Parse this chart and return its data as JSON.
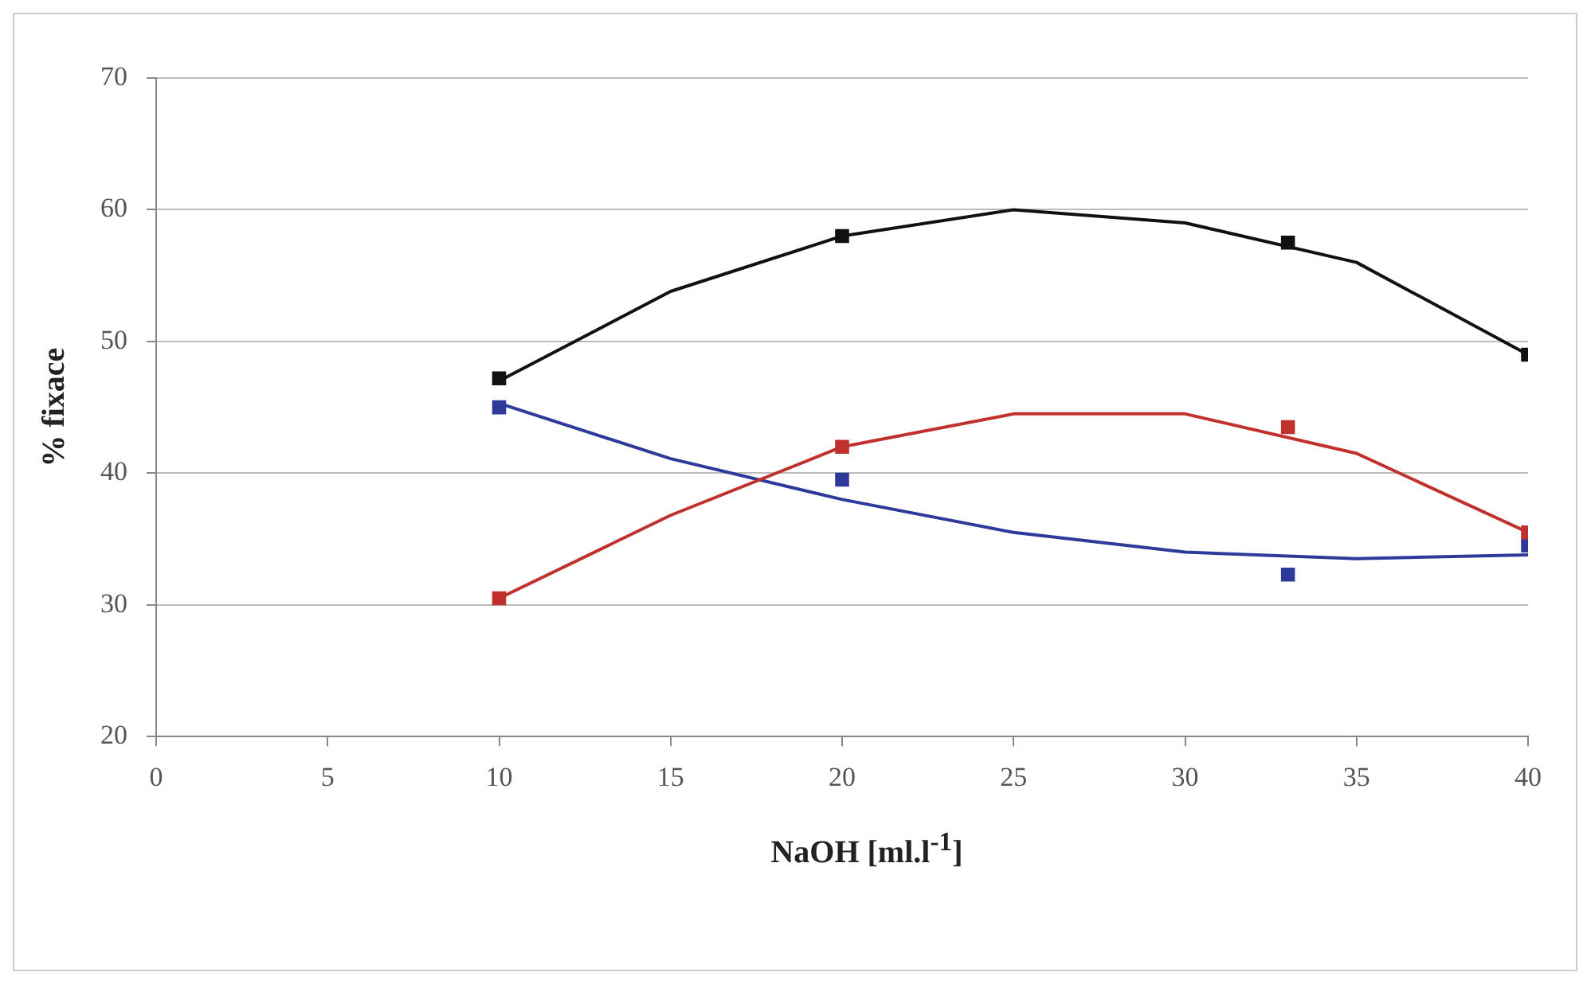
{
  "chart_data": {
    "type": "scatter",
    "xlabel": "NaOH [ml.l$^{-1}$]",
    "ylabel": "% fixace",
    "xlim": [
      0,
      40
    ],
    "xticks": [
      0,
      5,
      10,
      15,
      20,
      25,
      30,
      35,
      40
    ],
    "ylim": [
      20,
      70
    ],
    "yticks": [
      20,
      30,
      40,
      50,
      60,
      70
    ],
    "grid": "y",
    "legend": false,
    "series": [
      {
        "type": "scatter",
        "marker": "square",
        "color": "#111111",
        "x": [
          10,
          20,
          33,
          40
        ],
        "values": [
          47.2,
          58,
          57.5,
          49
        ]
      },
      {
        "type": "scatter",
        "marker": "square",
        "color": "#c0302c",
        "x": [
          10,
          20,
          33,
          40
        ],
        "values": [
          30.5,
          42,
          43.5,
          35.5
        ]
      },
      {
        "type": "scatter",
        "marker": "square",
        "color": "#2e3a9a",
        "x": [
          10,
          20,
          33,
          40
        ],
        "values": [
          45,
          39.5,
          32.3,
          34.5
        ]
      },
      {
        "type": "line",
        "marker": "none",
        "color": "#111111",
        "x": [
          10,
          15,
          20,
          25,
          30,
          35,
          40
        ],
        "values": [
          47,
          53.8,
          58,
          60,
          59,
          56,
          49
        ]
      },
      {
        "type": "line",
        "marker": "none",
        "color": "#c0302c",
        "x": [
          10,
          15,
          20,
          25,
          30,
          35,
          40
        ],
        "values": [
          30.5,
          36.8,
          42,
          44.5,
          44.5,
          41.5,
          35.5
        ]
      },
      {
        "type": "line",
        "marker": "none",
        "color": "#2e3a9a",
        "x": [
          10,
          15,
          20,
          25,
          30,
          35,
          40
        ],
        "values": [
          45.3,
          41.1,
          38,
          35.5,
          34,
          33.5,
          33.8
        ]
      }
    ]
  }
}
